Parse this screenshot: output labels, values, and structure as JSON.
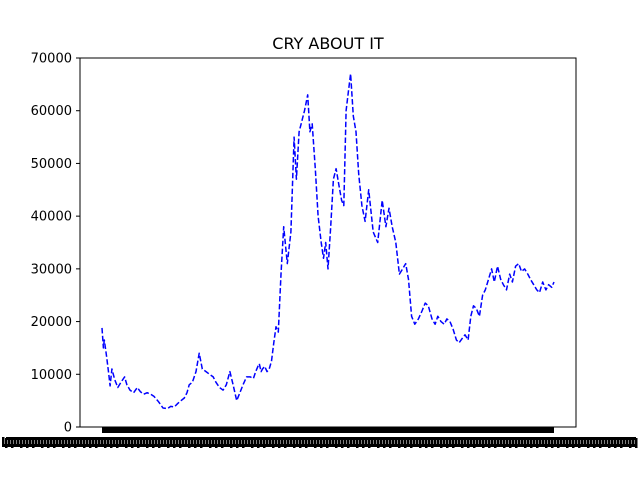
{
  "chart_data": {
    "type": "line",
    "title": "CRY ABOUT IT",
    "xlabel": "",
    "ylabel": "",
    "ylim": [
      0,
      70000
    ],
    "yticks": [
      0,
      10000,
      20000,
      30000,
      40000,
      50000,
      60000,
      70000
    ],
    "grid": false,
    "legend": "none",
    "line_style": "dashed",
    "series": [
      {
        "color": "#0000ff",
        "x": [
          0,
          3,
          5,
          10,
          15,
          18,
          22,
          28,
          35,
          42,
          50,
          55,
          62,
          70,
          78,
          85,
          92,
          100,
          108,
          115,
          125,
          135,
          145,
          152,
          160,
          168,
          175,
          182,
          188,
          193,
          200,
          208,
          215,
          222,
          230,
          238,
          246,
          252,
          260,
          268,
          275,
          283,
          290,
          298,
          305,
          312,
          320,
          328,
          335,
          340,
          345,
          348,
          352,
          355,
          360,
          365,
          370,
          375,
          380,
          385,
          390,
          396,
          402,
          410,
          418,
          425,
          430,
          436,
          442,
          448,
          455,
          460,
          465,
          472,
          478,
          485,
          490,
          495,
          500,
          506,
          512,
          518,
          524,
          530,
          535,
          540,
          545,
          550,
          556,
          562,
          568,
          575,
          582,
          590,
          600,
          610,
          620,
          628,
          635,
          642,
          650,
          658,
          665,
          672,
          678,
          685,
          692,
          700,
          708,
          715,
          722,
          730,
          737,
          743,
          750,
          757,
          763,
          770,
          777,
          784,
          790,
          797,
          803,
          810,
          816,
          822,
          828,
          835,
          842,
          848,
          855,
          862,
          868,
          875,
          882,
          888,
          895,
          902,
          908,
          915,
          922,
          928,
          935,
          942,
          948,
          955,
          962,
          968,
          975,
          982,
          988,
          995,
          1000
        ],
        "y": [
          18800,
          15000,
          16500,
          13500,
          10000,
          7800,
          11000,
          9000,
          7500,
          8500,
          9500,
          8000,
          7000,
          6500,
          7500,
          6700,
          6200,
          6500,
          6200,
          5800,
          4800,
          3600,
          3500,
          3900,
          3800,
          4500,
          5000,
          5500,
          6500,
          8000,
          8500,
          10500,
          14000,
          11000,
          10500,
          10000,
          9500,
          8500,
          7500,
          7000,
          8000,
          10500,
          8000,
          5000,
          6500,
          8000,
          9500,
          9500,
          9200,
          10500,
          11500,
          12000,
          10500,
          11000,
          11500,
          10500,
          11000,
          12500,
          16000,
          19000,
          18000,
          29000,
          38000,
          31000,
          37000,
          55000,
          47000,
          56000,
          58000,
          60000,
          63000,
          56000,
          57500,
          49000,
          40000,
          35000,
          32000,
          35000,
          30000,
          38000,
          47000,
          49000,
          46000,
          43000,
          42000,
          60000,
          63500,
          67000,
          59000,
          56000,
          48000,
          42000,
          39000,
          45000,
          37000,
          35000,
          43000,
          38000,
          41500,
          38000,
          35000,
          29000,
          30000,
          31000,
          28000,
          21000,
          19500,
          20500,
          22000,
          23500,
          23000,
          20500,
          19500,
          21000,
          20000,
          19500,
          20500,
          20000,
          18500,
          16500,
          16000,
          16800,
          17500,
          16500,
          21000,
          23000,
          22500,
          21000,
          25000,
          26000,
          28000,
          30000,
          27500,
          30500,
          28000,
          27000,
          26000,
          29000,
          27500,
          30500,
          31000,
          29500,
          30000,
          29000,
          28000,
          27000,
          26000,
          25500,
          27500,
          26000,
          27000,
          26500,
          27500
        ]
      }
    ]
  }
}
